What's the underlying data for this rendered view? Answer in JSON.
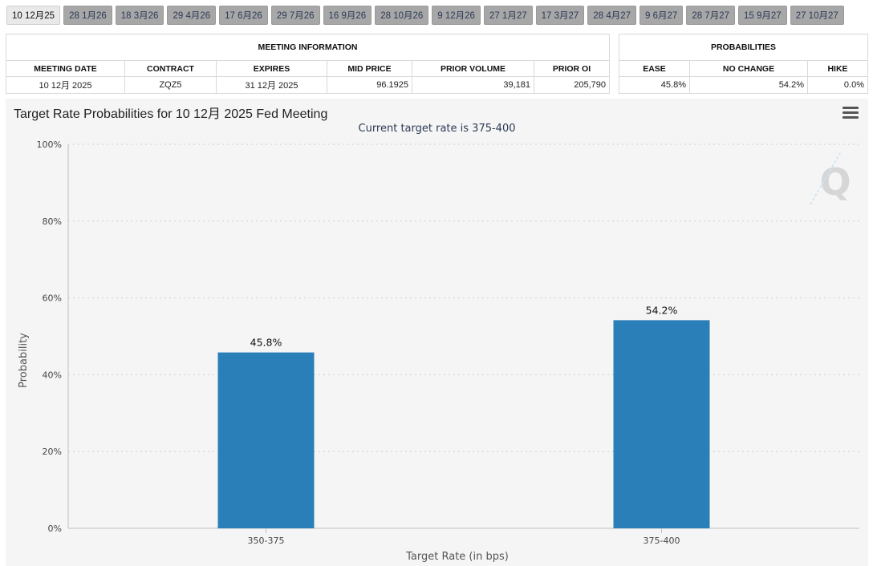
{
  "tabs": [
    "10 12月25",
    "28 1月26",
    "18 3月26",
    "29 4月26",
    "17 6月26",
    "29 7月26",
    "16 9月26",
    "28 10月26",
    "9 12月26",
    "27 1月27",
    "17 3月27",
    "28 4月27",
    "9 6月27",
    "28 7月27",
    "15 9月27",
    "27 10月27"
  ],
  "active_tab": 0,
  "meeting_info": {
    "title": "MEETING INFORMATION",
    "columns": [
      "MEETING DATE",
      "CONTRACT",
      "EXPIRES",
      "MID PRICE",
      "PRIOR VOLUME",
      "PRIOR OI"
    ],
    "values": [
      "10 12月 2025",
      "ZQZ5",
      "31 12月 2025",
      "96.1925",
      "39,181",
      "205,790"
    ]
  },
  "probabilities": {
    "title": "PROBABILITIES",
    "columns": [
      "EASE",
      "NO CHANGE",
      "HIKE"
    ],
    "values": [
      "45.8%",
      "54.2%",
      "0.0%"
    ]
  },
  "chart": {
    "title": "Target Rate Probabilities for 10 12月 2025 Fed Meeting",
    "subtitle": "Current target rate is 375-400",
    "watermark": "Q",
    "bar_color": "#2a7fb8"
  },
  "chart_data": {
    "type": "bar",
    "title": "Target Rate Probabilities for 10 12月 2025 Fed Meeting",
    "subtitle": "Current target rate is 375-400",
    "categories": [
      "350-375",
      "375-400"
    ],
    "values": [
      45.8,
      54.2
    ],
    "data_labels": [
      "45.8%",
      "54.2%"
    ],
    "xlabel": "Target Rate (in bps)",
    "ylabel": "Probability",
    "ylim": [
      0,
      100
    ],
    "yticks": [
      "0%",
      "20%",
      "40%",
      "60%",
      "80%",
      "100%"
    ],
    "grid": true
  }
}
